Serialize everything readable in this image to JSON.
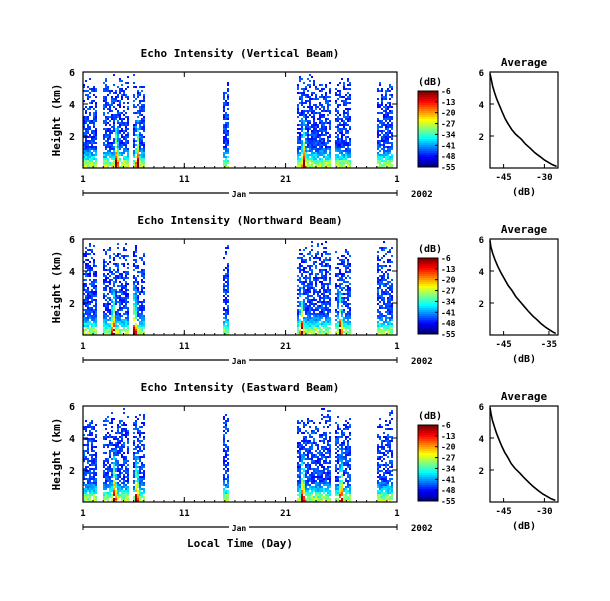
{
  "chart_data": [
    {
      "type": "heatmap",
      "title": "Echo Intensity (Vertical Beam)",
      "ylabel": "Height (km)",
      "yticks": [
        "2",
        "4",
        "6"
      ],
      "ylim": [
        0,
        6
      ],
      "xlim": [
        1,
        32
      ],
      "xticks": [
        "1",
        "11",
        "21",
        "1"
      ],
      "month_label": "Jan",
      "year_label": "2002",
      "colorbar": {
        "unit": "(dB)",
        "ticks": [
          "-6",
          "-13",
          "-20",
          "-27",
          "-34",
          "-41",
          "-48",
          "-55"
        ],
        "range": [
          -55,
          -6
        ]
      },
      "data_spans_days": [
        [
          1.0,
          2.3
        ],
        [
          2.9,
          3.8
        ],
        [
          3.9,
          5.4
        ],
        [
          5.8,
          7.0
        ],
        [
          14.7,
          15.4
        ],
        [
          22.0,
          25.3
        ],
        [
          25.7,
          27.4
        ],
        [
          30.0,
          31.6
        ]
      ],
      "strong_echo_days": [
        4.2,
        6.3,
        22.7,
        25.6
      ]
    },
    {
      "type": "line",
      "title": "Average",
      "xlabel": "(dB)",
      "xticks": [
        "-45",
        "-30"
      ],
      "yticks": [
        "2",
        "4",
        "6"
      ],
      "xlim": [
        -50,
        -25
      ],
      "ylim": [
        0,
        6
      ],
      "x": [
        -50.0,
        -49.5,
        -49.0,
        -48.3,
        -47.5,
        -46.5,
        -45.5,
        -44.5,
        -43.5,
        -42.0,
        -40.5,
        -38.5,
        -37.0,
        -35.0,
        -33.5,
        -31.5,
        -30.0,
        -28.5,
        -27.0,
        -25.5
      ],
      "y": [
        5.9,
        5.5,
        5.1,
        4.7,
        4.3,
        3.9,
        3.5,
        3.1,
        2.8,
        2.4,
        2.1,
        1.8,
        1.5,
        1.2,
        0.95,
        0.7,
        0.5,
        0.35,
        0.2,
        0.1
      ]
    },
    {
      "type": "heatmap",
      "title": "Echo Intensity (Northward Beam)",
      "ylabel": "Height (km)",
      "yticks": [
        "2",
        "4",
        "6"
      ],
      "ylim": [
        0,
        6
      ],
      "xlim": [
        1,
        32
      ],
      "xticks": [
        "1",
        "11",
        "21",
        "1"
      ],
      "month_label": "Jan",
      "year_label": "2002",
      "colorbar": {
        "unit": "(dB)",
        "ticks": [
          "-6",
          "-13",
          "-20",
          "-27",
          "-34",
          "-41",
          "-48",
          "-55"
        ],
        "range": [
          -55,
          -6
        ]
      },
      "data_spans_days": [
        [
          1.0,
          2.3
        ],
        [
          2.9,
          3.8
        ],
        [
          3.9,
          5.4
        ],
        [
          5.8,
          7.0
        ],
        [
          14.7,
          15.4
        ],
        [
          22.0,
          25.3
        ],
        [
          25.7,
          27.4
        ],
        [
          30.0,
          31.6
        ]
      ],
      "strong_echo_days": [
        3.9,
        6.0,
        22.5,
        26.3
      ]
    },
    {
      "type": "line",
      "title": "Average",
      "xlabel": "(dB)",
      "xticks": [
        "-45",
        "-35"
      ],
      "yticks": [
        "2",
        "4",
        "6"
      ],
      "xlim": [
        -48,
        -33
      ],
      "ylim": [
        0,
        6
      ],
      "x": [
        -48.0,
        -47.8,
        -47.4,
        -46.9,
        -46.3,
        -45.6,
        -44.8,
        -44.0,
        -43.2,
        -42.3,
        -41.4,
        -40.5,
        -39.6,
        -38.6,
        -37.6,
        -36.7,
        -35.8,
        -35.0,
        -34.2,
        -33.5
      ],
      "y": [
        5.9,
        5.5,
        5.1,
        4.7,
        4.3,
        3.9,
        3.5,
        3.1,
        2.8,
        2.4,
        2.1,
        1.8,
        1.5,
        1.2,
        0.95,
        0.7,
        0.5,
        0.35,
        0.2,
        0.1
      ]
    },
    {
      "type": "heatmap",
      "title": "Echo Intensity (Eastward Beam)",
      "ylabel": "Height (km)",
      "yticks": [
        "2",
        "4",
        "6"
      ],
      "ylim": [
        0,
        6
      ],
      "xlim": [
        1,
        32
      ],
      "xticks": [
        "1",
        "11",
        "21",
        "1"
      ],
      "month_label": "Jan",
      "year_label": "2002",
      "xlabel": "Local Time (Day)",
      "colorbar": {
        "unit": "(dB)",
        "ticks": [
          "-6",
          "-13",
          "-20",
          "-27",
          "-34",
          "-41",
          "-48",
          "-55"
        ],
        "range": [
          -55,
          -6
        ]
      },
      "data_spans_days": [
        [
          1.0,
          2.3
        ],
        [
          2.9,
          3.8
        ],
        [
          3.9,
          5.4
        ],
        [
          5.8,
          7.0
        ],
        [
          14.7,
          15.4
        ],
        [
          22.0,
          25.3
        ],
        [
          25.7,
          27.4
        ],
        [
          30.0,
          31.6
        ]
      ],
      "strong_echo_days": [
        4.0,
        6.2,
        22.6,
        26.4
      ]
    },
    {
      "type": "line",
      "title": "Average",
      "xlabel": "(dB)",
      "xticks": [
        "-45",
        "-30"
      ],
      "yticks": [
        "2",
        "4",
        "6"
      ],
      "xlim": [
        -50,
        -25
      ],
      "ylim": [
        0,
        6
      ],
      "x": [
        -50.0,
        -49.6,
        -49.1,
        -48.4,
        -47.6,
        -46.7,
        -45.7,
        -44.6,
        -43.5,
        -42.2,
        -40.8,
        -39.0,
        -37.4,
        -35.6,
        -34.0,
        -32.2,
        -30.6,
        -29.0,
        -27.5,
        -26.0
      ],
      "y": [
        5.9,
        5.5,
        5.1,
        4.7,
        4.3,
        3.9,
        3.5,
        3.1,
        2.8,
        2.4,
        2.1,
        1.8,
        1.5,
        1.2,
        0.95,
        0.7,
        0.5,
        0.35,
        0.2,
        0.1
      ]
    }
  ]
}
